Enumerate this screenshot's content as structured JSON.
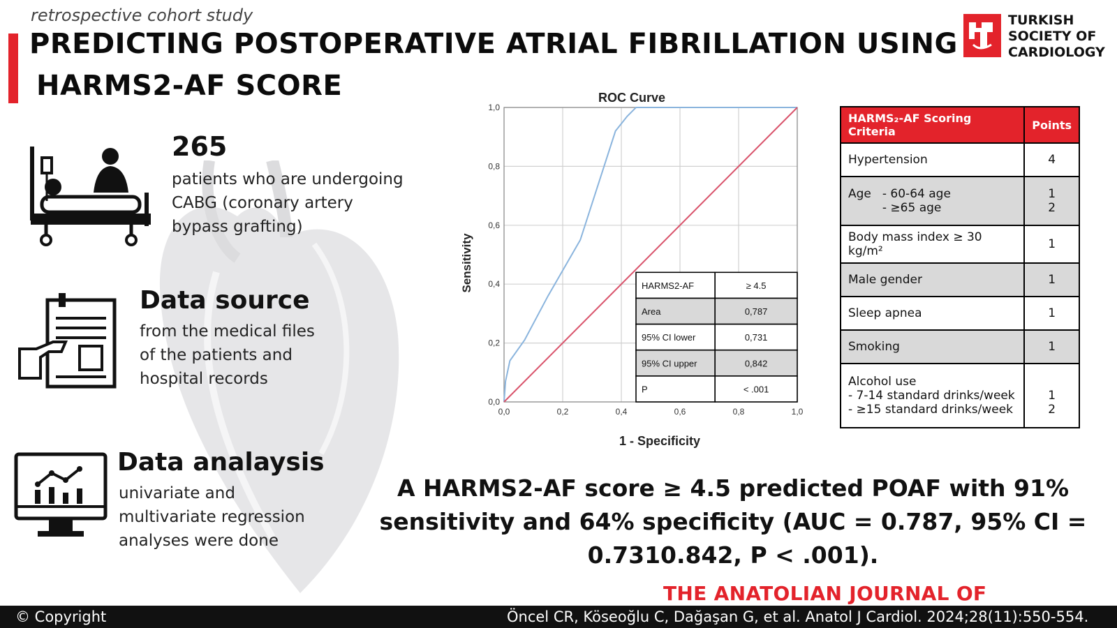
{
  "header": {
    "study_type": "retrospective cohort study",
    "title_line1": "PREDICTING POSTOPERATIVE ATRIAL FIBRILLATION USING",
    "title_line2": "HARMS2-AF SCORE"
  },
  "logo": {
    "line1": "TURKISH",
    "line2": "SOCIETY OF",
    "line3": "CARDIOLOGY",
    "color": "#e3232b"
  },
  "patients": {
    "icon": "hospital-bed-icon",
    "count": "265",
    "line1": "patients who are undergoing",
    "line2": "CABG (coronary artery",
    "line3": "bypass grafting)"
  },
  "data_source": {
    "icon": "medical-records-icon",
    "title": "Data source",
    "line1": "from the medical files",
    "line2": "of the patients and",
    "line3": "hospital records"
  },
  "data_analysis": {
    "icon": "monitor-chart-icon",
    "title": "Data analaysis",
    "line1": "univariate and",
    "line2": "multivariate regression",
    "line3": "analyses were done"
  },
  "chart_data": {
    "type": "line",
    "title": "ROC Curve",
    "xlabel": "1 - Specificity",
    "ylabel": "Sensitivity",
    "xlim": [
      0,
      1
    ],
    "ylim": [
      0,
      1
    ],
    "x_ticks": [
      "0,0",
      "0,2",
      "0,4",
      "0,6",
      "0,8",
      "1,0"
    ],
    "y_ticks": [
      "0,0",
      "0,2",
      "0,4",
      "0,6",
      "0,8",
      "1,0"
    ],
    "grid": true,
    "series": [
      {
        "color": "#8ab4dd",
        "x": [
          0,
          0.005,
          0.02,
          0.07,
          0.15,
          0.26,
          0.38,
          0.42,
          0.45,
          1.0
        ],
        "y": [
          0,
          0.07,
          0.14,
          0.21,
          0.36,
          0.55,
          0.92,
          0.97,
          1.0,
          1.0
        ]
      },
      {
        "color": "#d9536b",
        "x": [
          0,
          1
        ],
        "y": [
          0,
          1
        ]
      }
    ],
    "table": [
      [
        "HARMS2-AF",
        "≥ 4.5"
      ],
      [
        "Area",
        "0,787"
      ],
      [
        "95% CI lower",
        "0,731"
      ],
      [
        "95% CI upper",
        "0,842"
      ],
      [
        "P",
        "< .001"
      ]
    ]
  },
  "criteria": {
    "header_criteria": "HARMS₂-AF Scoring Criteria",
    "header_points": "Points",
    "header_color": "#e3232b",
    "rows": [
      {
        "label": "Hypertension",
        "points": "4"
      },
      {
        "label": "Age",
        "sub1": "- 60-64 age",
        "sub2": "- ≥65 age",
        "p1": "1",
        "p2": "2"
      },
      {
        "label": "Body mass index ≥ 30 kg/m²",
        "points": "1"
      },
      {
        "label": "Male gender",
        "points": "1"
      },
      {
        "label": "Sleep apnea",
        "points": "1"
      },
      {
        "label": "Smoking",
        "points": "1"
      },
      {
        "label": "Alcohol use",
        "sub1": "- 7-14 standard drinks/week",
        "sub2": "- ≥15 standard drinks/week",
        "p1": "1",
        "p2": "2"
      }
    ]
  },
  "summary": {
    "line1": "A HARMS2-AF score ≥ 4.5 predicted POAF with 91%",
    "line2": "sensitivity and 64% specificity (AUC = 0.787, 95% CI =",
    "line3": "0.7310.842, P < .001)."
  },
  "footer": {
    "journal": "THE ANATOLIAN JOURNAL OF CARDIOLOGY",
    "copyright": "© Copyright",
    "citation": "Öncel CR, Köseoğlu C, Dağaşan G, et al. Anatol J Cardiol. 2024;28(11):550-554."
  }
}
